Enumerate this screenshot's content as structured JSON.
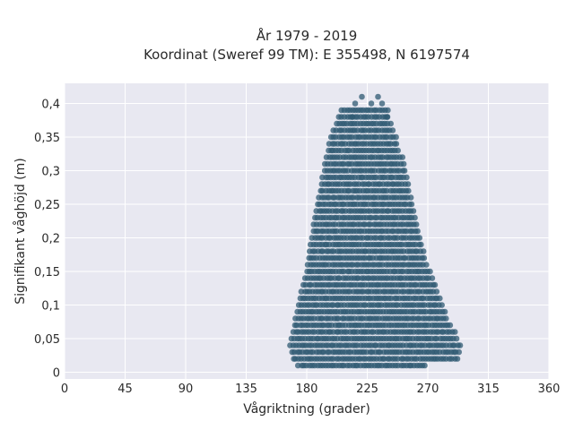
{
  "chart_data": {
    "type": "scatter",
    "title": "År 1979 - 2019",
    "subtitle": "Koordinat (Sweref 99 TM): E 355498, N 6197574",
    "xlabel": "Vågriktning (grader)",
    "ylabel": "Signifikant våghöjd (m)",
    "xlim": [
      0,
      360
    ],
    "ylim": [
      -0.01,
      0.43
    ],
    "xticks": [
      0,
      45,
      90,
      135,
      180,
      225,
      270,
      315,
      360
    ],
    "xtick_labels": [
      "0",
      "45",
      "90",
      "135",
      "180",
      "225",
      "270",
      "315",
      "360"
    ],
    "yticks": [
      0,
      0.05,
      0.1,
      0.15,
      0.2,
      0.25,
      0.3,
      0.35,
      0.4
    ],
    "ytick_labels": [
      "0",
      "0,05",
      "0,1",
      "0,15",
      "0,2",
      "0,25",
      "0,3",
      "0,35",
      "0,4"
    ],
    "grid": true,
    "marker_color": "#2f5a72",
    "background_color": "#e8e8f1",
    "envelope": [
      {
        "y": 0.01,
        "x_min": 174,
        "x_max": 268
      },
      {
        "y": 0.02,
        "x_min": 170,
        "x_max": 293
      },
      {
        "y": 0.04,
        "x_min": 168,
        "x_max": 294
      },
      {
        "y": 0.06,
        "x_min": 170,
        "x_max": 290
      },
      {
        "y": 0.08,
        "x_min": 172,
        "x_max": 285
      },
      {
        "y": 0.1,
        "x_min": 174,
        "x_max": 281
      },
      {
        "y": 0.15,
        "x_min": 180,
        "x_max": 272
      },
      {
        "y": 0.2,
        "x_min": 184,
        "x_max": 264
      },
      {
        "y": 0.25,
        "x_min": 188,
        "x_max": 259
      },
      {
        "y": 0.3,
        "x_min": 193,
        "x_max": 254
      },
      {
        "y": 0.35,
        "x_min": 198,
        "x_max": 247
      },
      {
        "y": 0.38,
        "x_min": 204,
        "x_max": 240
      },
      {
        "y": 0.39,
        "x_min": 206,
        "x_max": 241
      }
    ],
    "outliers": [
      {
        "x": 221,
        "y": 0.41
      },
      {
        "x": 233,
        "y": 0.41
      },
      {
        "x": 216,
        "y": 0.4
      },
      {
        "x": 236,
        "y": 0.4
      },
      {
        "x": 228,
        "y": 0.4
      },
      {
        "x": 214,
        "y": 0.38
      },
      {
        "x": 240,
        "y": 0.38
      }
    ]
  }
}
